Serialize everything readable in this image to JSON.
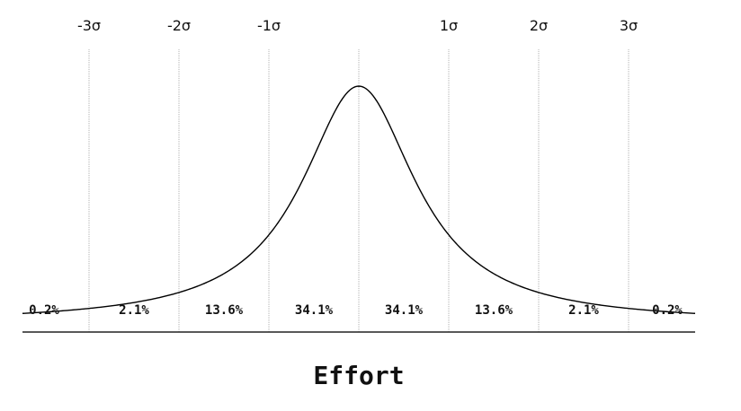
{
  "sigma_labels": [
    "-3σ",
    "-2σ",
    "-1σ",
    "1σ",
    "2σ",
    "3σ"
  ],
  "band_percentages": [
    "0.2%",
    "2.1%",
    "13.6%",
    "34.1%",
    "34.1%",
    "13.6%",
    "2.1%",
    "0.2%"
  ],
  "x_axis_label": "Effort",
  "colors": {
    "curve": "#000000",
    "gridline": "#b0b0b0",
    "text": "#111111"
  }
}
